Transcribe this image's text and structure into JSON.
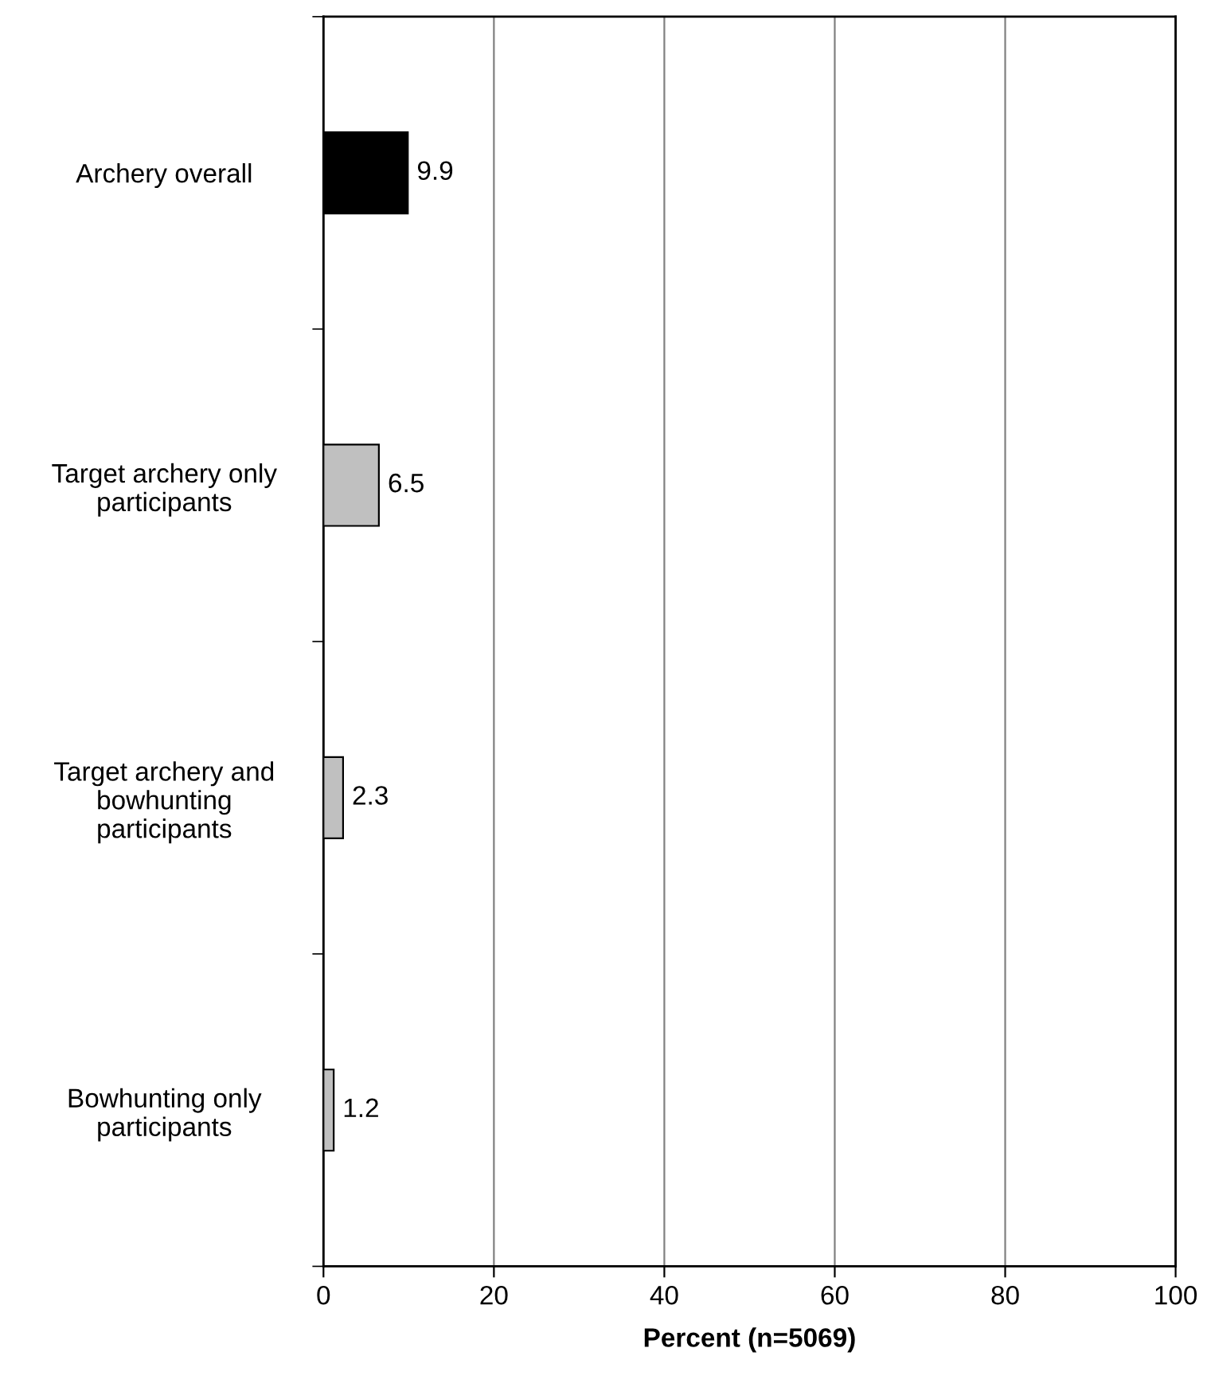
{
  "chart_data": {
    "type": "bar",
    "orientation": "horizontal",
    "xlabel": "Percent (n=5069)",
    "categories": [
      "Archery overall",
      "Target archery only\nparticipants",
      "Target archery and\nbowhunting\nparticipants",
      "Bowhunting only\nparticipants"
    ],
    "values": [
      9.9,
      6.5,
      2.3,
      1.2
    ],
    "colors": [
      "#000000",
      "#c0c0c0",
      "#c0c0c0",
      "#c0c0c0"
    ],
    "xlim": [
      0,
      100
    ],
    "xticks": [
      0,
      20,
      40,
      60,
      80,
      100
    ],
    "grid": "x",
    "data_labels": true,
    "legend": false
  }
}
